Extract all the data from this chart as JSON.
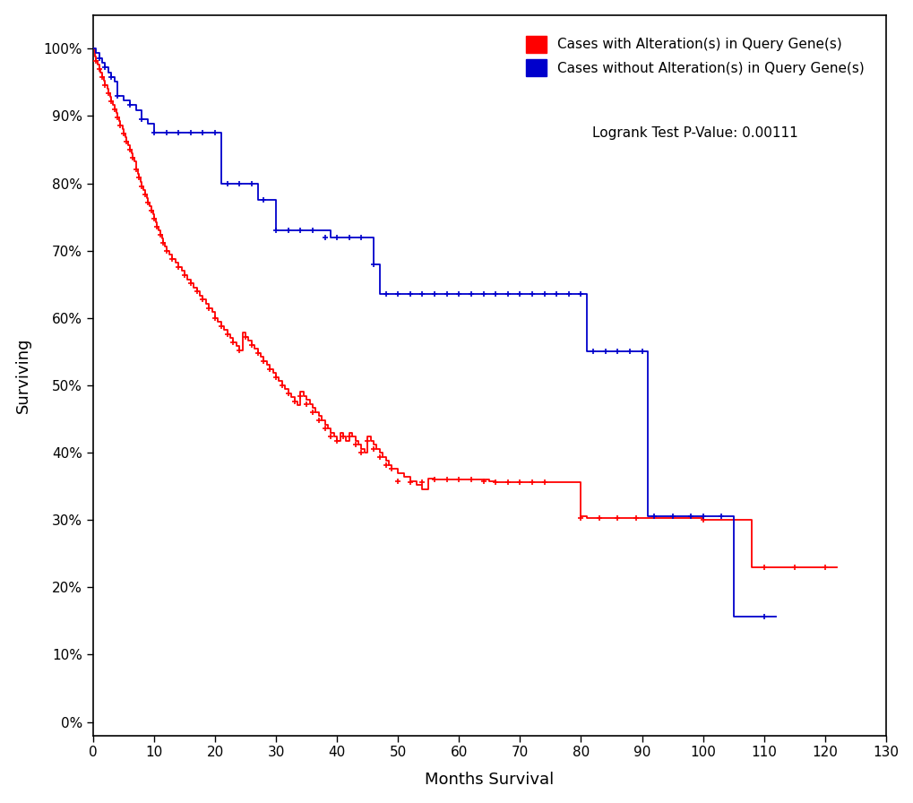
{
  "xlabel": "Months Survival",
  "ylabel": "Surviving",
  "xlim": [
    0,
    130
  ],
  "ylim": [
    -0.02,
    1.05
  ],
  "yticks": [
    0.0,
    0.1,
    0.2,
    0.3,
    0.4,
    0.5,
    0.6,
    0.7,
    0.8,
    0.9,
    1.0
  ],
  "ytick_labels": [
    "0%",
    "10%",
    "20%",
    "30%",
    "40%",
    "50%",
    "60%",
    "70%",
    "80%",
    "90%",
    "100%"
  ],
  "xticks": [
    0,
    10,
    20,
    30,
    40,
    50,
    60,
    70,
    80,
    90,
    100,
    110,
    120,
    130
  ],
  "legend_text1": "Cases with Alteration(s) in Query Gene(s)",
  "legend_text2": "Cases without Alteration(s) in Query Gene(s)",
  "pvalue_text": "Logrank Test P-Value: 0.00111",
  "color_red": "#FF0000",
  "color_blue": "#0000CC",
  "red_steps": [
    [
      0,
      1.0
    ],
    [
      0.3,
      0.988
    ],
    [
      0.5,
      0.982
    ],
    [
      0.8,
      0.976
    ],
    [
      1.0,
      0.97
    ],
    [
      1.2,
      0.964
    ],
    [
      1.5,
      0.958
    ],
    [
      1.8,
      0.952
    ],
    [
      2.0,
      0.946
    ],
    [
      2.3,
      0.94
    ],
    [
      2.5,
      0.934
    ],
    [
      2.8,
      0.928
    ],
    [
      3.0,
      0.922
    ],
    [
      3.3,
      0.916
    ],
    [
      3.5,
      0.91
    ],
    [
      3.8,
      0.904
    ],
    [
      4.0,
      0.898
    ],
    [
      4.3,
      0.892
    ],
    [
      4.5,
      0.886
    ],
    [
      4.8,
      0.88
    ],
    [
      5.0,
      0.874
    ],
    [
      5.3,
      0.868
    ],
    [
      5.5,
      0.862
    ],
    [
      5.8,
      0.856
    ],
    [
      6.0,
      0.85
    ],
    [
      6.3,
      0.844
    ],
    [
      6.5,
      0.838
    ],
    [
      6.8,
      0.832
    ],
    [
      7.0,
      0.82
    ],
    [
      7.3,
      0.814
    ],
    [
      7.5,
      0.808
    ],
    [
      7.8,
      0.802
    ],
    [
      8.0,
      0.796
    ],
    [
      8.3,
      0.79
    ],
    [
      8.5,
      0.784
    ],
    [
      8.8,
      0.778
    ],
    [
      9.0,
      0.772
    ],
    [
      9.3,
      0.766
    ],
    [
      9.5,
      0.76
    ],
    [
      9.8,
      0.754
    ],
    [
      10.0,
      0.748
    ],
    [
      10.3,
      0.742
    ],
    [
      10.5,
      0.736
    ],
    [
      10.8,
      0.73
    ],
    [
      11.0,
      0.724
    ],
    [
      11.3,
      0.718
    ],
    [
      11.5,
      0.712
    ],
    [
      11.8,
      0.706
    ],
    [
      12.0,
      0.7
    ],
    [
      12.5,
      0.694
    ],
    [
      13.0,
      0.688
    ],
    [
      13.5,
      0.682
    ],
    [
      14.0,
      0.676
    ],
    [
      14.5,
      0.67
    ],
    [
      15.0,
      0.663
    ],
    [
      15.5,
      0.657
    ],
    [
      16.0,
      0.651
    ],
    [
      16.5,
      0.645
    ],
    [
      17.0,
      0.639
    ],
    [
      17.5,
      0.633
    ],
    [
      18.0,
      0.627
    ],
    [
      18.5,
      0.621
    ],
    [
      19.0,
      0.615
    ],
    [
      19.5,
      0.609
    ],
    [
      20.0,
      0.6
    ],
    [
      20.5,
      0.594
    ],
    [
      21.0,
      0.588
    ],
    [
      21.5,
      0.582
    ],
    [
      22.0,
      0.576
    ],
    [
      22.5,
      0.57
    ],
    [
      23.0,
      0.564
    ],
    [
      23.5,
      0.558
    ],
    [
      24.0,
      0.552
    ],
    [
      24.5,
      0.578
    ],
    [
      25.0,
      0.572
    ],
    [
      25.5,
      0.566
    ],
    [
      26.0,
      0.56
    ],
    [
      26.5,
      0.554
    ],
    [
      27.0,
      0.548
    ],
    [
      27.5,
      0.542
    ],
    [
      28.0,
      0.536
    ],
    [
      28.5,
      0.53
    ],
    [
      29.0,
      0.524
    ],
    [
      29.5,
      0.518
    ],
    [
      30.0,
      0.512
    ],
    [
      30.5,
      0.506
    ],
    [
      31.0,
      0.5
    ],
    [
      31.5,
      0.494
    ],
    [
      32.0,
      0.488
    ],
    [
      32.5,
      0.482
    ],
    [
      33.0,
      0.476
    ],
    [
      33.5,
      0.47
    ],
    [
      34.0,
      0.49
    ],
    [
      34.5,
      0.484
    ],
    [
      35.0,
      0.478
    ],
    [
      35.5,
      0.472
    ],
    [
      36.0,
      0.466
    ],
    [
      36.5,
      0.46
    ],
    [
      37.0,
      0.454
    ],
    [
      37.5,
      0.448
    ],
    [
      38.0,
      0.442
    ],
    [
      38.5,
      0.436
    ],
    [
      39.0,
      0.43
    ],
    [
      39.5,
      0.424
    ],
    [
      40.0,
      0.418
    ],
    [
      40.5,
      0.43
    ],
    [
      41.0,
      0.424
    ],
    [
      41.5,
      0.418
    ],
    [
      42.0,
      0.43
    ],
    [
      42.5,
      0.424
    ],
    [
      43.0,
      0.418
    ],
    [
      43.5,
      0.412
    ],
    [
      44.0,
      0.406
    ],
    [
      44.5,
      0.4
    ],
    [
      45.0,
      0.424
    ],
    [
      45.5,
      0.418
    ],
    [
      46.0,
      0.412
    ],
    [
      46.5,
      0.406
    ],
    [
      47.0,
      0.4
    ],
    [
      47.5,
      0.394
    ],
    [
      48.0,
      0.388
    ],
    [
      48.5,
      0.382
    ],
    [
      49.0,
      0.376
    ],
    [
      50.0,
      0.37
    ],
    [
      51.0,
      0.364
    ],
    [
      52.0,
      0.358
    ],
    [
      53.0,
      0.352
    ],
    [
      54.0,
      0.346
    ],
    [
      55.0,
      0.362
    ],
    [
      56.0,
      0.36
    ],
    [
      57.0,
      0.36
    ],
    [
      58.0,
      0.36
    ],
    [
      59.0,
      0.36
    ],
    [
      60.0,
      0.36
    ],
    [
      61.0,
      0.36
    ],
    [
      62.0,
      0.36
    ],
    [
      63.0,
      0.36
    ],
    [
      64.0,
      0.36
    ],
    [
      65.0,
      0.358
    ],
    [
      66.0,
      0.356
    ],
    [
      67.0,
      0.356
    ],
    [
      68.0,
      0.356
    ],
    [
      69.0,
      0.356
    ],
    [
      70.0,
      0.356
    ],
    [
      71.0,
      0.356
    ],
    [
      72.0,
      0.356
    ],
    [
      73.0,
      0.356
    ],
    [
      74.0,
      0.356
    ],
    [
      75.0,
      0.356
    ],
    [
      80.0,
      0.305
    ],
    [
      81.0,
      0.303
    ],
    [
      82.0,
      0.303
    ],
    [
      83.0,
      0.303
    ],
    [
      84.0,
      0.303
    ],
    [
      85.0,
      0.303
    ],
    [
      86.0,
      0.303
    ],
    [
      87.0,
      0.303
    ],
    [
      88.0,
      0.303
    ],
    [
      89.0,
      0.303
    ],
    [
      90.0,
      0.303
    ],
    [
      100.0,
      0.3
    ],
    [
      108.0,
      0.23
    ],
    [
      112.0,
      0.23
    ],
    [
      115.0,
      0.23
    ],
    [
      120.0,
      0.23
    ],
    [
      122.0,
      0.23
    ]
  ],
  "blue_steps": [
    [
      0,
      1.0
    ],
    [
      0.5,
      0.993
    ],
    [
      1.0,
      0.986
    ],
    [
      1.5,
      0.979
    ],
    [
      2.0,
      0.972
    ],
    [
      2.5,
      0.965
    ],
    [
      3.0,
      0.958
    ],
    [
      3.5,
      0.951
    ],
    [
      4.0,
      0.93
    ],
    [
      5.0,
      0.923
    ],
    [
      6.0,
      0.916
    ],
    [
      7.0,
      0.909
    ],
    [
      8.0,
      0.895
    ],
    [
      9.0,
      0.888
    ],
    [
      10.0,
      0.875
    ],
    [
      11.0,
      0.875
    ],
    [
      12.0,
      0.875
    ],
    [
      13.0,
      0.875
    ],
    [
      14.0,
      0.875
    ],
    [
      15.0,
      0.875
    ],
    [
      16.0,
      0.875
    ],
    [
      17.0,
      0.875
    ],
    [
      18.0,
      0.875
    ],
    [
      19.0,
      0.875
    ],
    [
      20.0,
      0.875
    ],
    [
      21.0,
      0.8
    ],
    [
      22.0,
      0.8
    ],
    [
      23.0,
      0.8
    ],
    [
      24.0,
      0.8
    ],
    [
      25.0,
      0.8
    ],
    [
      26.0,
      0.8
    ],
    [
      27.0,
      0.775
    ],
    [
      28.0,
      0.775
    ],
    [
      29.0,
      0.775
    ],
    [
      30.0,
      0.73
    ],
    [
      31.0,
      0.73
    ],
    [
      32.0,
      0.73
    ],
    [
      33.0,
      0.73
    ],
    [
      34.0,
      0.73
    ],
    [
      35.0,
      0.73
    ],
    [
      36.0,
      0.73
    ],
    [
      37.0,
      0.73
    ],
    [
      38.0,
      0.73
    ],
    [
      39.0,
      0.72
    ],
    [
      40.0,
      0.72
    ],
    [
      41.0,
      0.72
    ],
    [
      42.0,
      0.72
    ],
    [
      43.0,
      0.72
    ],
    [
      44.0,
      0.72
    ],
    [
      45.0,
      0.72
    ],
    [
      46.0,
      0.68
    ],
    [
      47.0,
      0.635
    ],
    [
      48.0,
      0.635
    ],
    [
      49.0,
      0.635
    ],
    [
      50.0,
      0.635
    ],
    [
      51.0,
      0.635
    ],
    [
      52.0,
      0.635
    ],
    [
      53.0,
      0.635
    ],
    [
      54.0,
      0.635
    ],
    [
      55.0,
      0.635
    ],
    [
      56.0,
      0.635
    ],
    [
      57.0,
      0.635
    ],
    [
      58.0,
      0.635
    ],
    [
      59.0,
      0.635
    ],
    [
      60.0,
      0.635
    ],
    [
      61.0,
      0.635
    ],
    [
      62.0,
      0.635
    ],
    [
      63.0,
      0.635
    ],
    [
      64.0,
      0.635
    ],
    [
      65.0,
      0.635
    ],
    [
      66.0,
      0.635
    ],
    [
      67.0,
      0.635
    ],
    [
      68.0,
      0.635
    ],
    [
      69.0,
      0.635
    ],
    [
      70.0,
      0.635
    ],
    [
      71.0,
      0.635
    ],
    [
      72.0,
      0.635
    ],
    [
      73.0,
      0.635
    ],
    [
      74.0,
      0.635
    ],
    [
      75.0,
      0.635
    ],
    [
      76.0,
      0.635
    ],
    [
      77.0,
      0.635
    ],
    [
      78.0,
      0.635
    ],
    [
      79.0,
      0.635
    ],
    [
      80.0,
      0.635
    ],
    [
      81.0,
      0.55
    ],
    [
      82.0,
      0.55
    ],
    [
      83.0,
      0.55
    ],
    [
      84.0,
      0.55
    ],
    [
      85.0,
      0.55
    ],
    [
      86.0,
      0.55
    ],
    [
      87.0,
      0.55
    ],
    [
      88.0,
      0.55
    ],
    [
      89.0,
      0.55
    ],
    [
      90.0,
      0.55
    ],
    [
      91.0,
      0.305
    ],
    [
      92.0,
      0.305
    ],
    [
      93.0,
      0.305
    ],
    [
      94.0,
      0.305
    ],
    [
      95.0,
      0.305
    ],
    [
      96.0,
      0.305
    ],
    [
      97.0,
      0.305
    ],
    [
      98.0,
      0.305
    ],
    [
      99.0,
      0.305
    ],
    [
      100.0,
      0.305
    ],
    [
      101.0,
      0.305
    ],
    [
      102.0,
      0.305
    ],
    [
      103.0,
      0.305
    ],
    [
      104.0,
      0.305
    ],
    [
      105.0,
      0.157
    ],
    [
      110.0,
      0.157
    ],
    [
      112.0,
      0.157
    ]
  ],
  "red_censors": [
    [
      0.5,
      0.982
    ],
    [
      1.0,
      0.97
    ],
    [
      1.5,
      0.958
    ],
    [
      2.0,
      0.946
    ],
    [
      2.5,
      0.934
    ],
    [
      3.0,
      0.922
    ],
    [
      3.5,
      0.91
    ],
    [
      4.0,
      0.898
    ],
    [
      4.5,
      0.886
    ],
    [
      5.0,
      0.874
    ],
    [
      5.5,
      0.862
    ],
    [
      6.0,
      0.85
    ],
    [
      6.5,
      0.838
    ],
    [
      7.0,
      0.82
    ],
    [
      7.5,
      0.808
    ],
    [
      8.0,
      0.796
    ],
    [
      8.5,
      0.784
    ],
    [
      9.0,
      0.772
    ],
    [
      9.5,
      0.76
    ],
    [
      10.0,
      0.748
    ],
    [
      10.5,
      0.736
    ],
    [
      11.0,
      0.724
    ],
    [
      11.5,
      0.712
    ],
    [
      12.0,
      0.7
    ],
    [
      13.0,
      0.688
    ],
    [
      14.0,
      0.676
    ],
    [
      15.0,
      0.663
    ],
    [
      16.0,
      0.651
    ],
    [
      17.0,
      0.639
    ],
    [
      18.0,
      0.627
    ],
    [
      19.0,
      0.615
    ],
    [
      20.0,
      0.6
    ],
    [
      21.0,
      0.588
    ],
    [
      22.0,
      0.576
    ],
    [
      23.0,
      0.564
    ],
    [
      24.0,
      0.552
    ],
    [
      25.0,
      0.572
    ],
    [
      26.0,
      0.56
    ],
    [
      27.0,
      0.548
    ],
    [
      28.0,
      0.536
    ],
    [
      29.0,
      0.524
    ],
    [
      30.0,
      0.512
    ],
    [
      31.0,
      0.5
    ],
    [
      32.0,
      0.488
    ],
    [
      33.0,
      0.476
    ],
    [
      34.0,
      0.484
    ],
    [
      35.0,
      0.472
    ],
    [
      36.0,
      0.46
    ],
    [
      37.0,
      0.448
    ],
    [
      38.0,
      0.436
    ],
    [
      39.0,
      0.424
    ],
    [
      40.0,
      0.418
    ],
    [
      41.0,
      0.424
    ],
    [
      42.0,
      0.424
    ],
    [
      43.0,
      0.412
    ],
    [
      44.0,
      0.4
    ],
    [
      45.0,
      0.418
    ],
    [
      46.0,
      0.406
    ],
    [
      47.0,
      0.394
    ],
    [
      48.0,
      0.382
    ],
    [
      49.0,
      0.376
    ],
    [
      50.0,
      0.358
    ],
    [
      52.0,
      0.356
    ],
    [
      54.0,
      0.356
    ],
    [
      56.0,
      0.36
    ],
    [
      58.0,
      0.36
    ],
    [
      60.0,
      0.36
    ],
    [
      62.0,
      0.36
    ],
    [
      64.0,
      0.358
    ],
    [
      66.0,
      0.356
    ],
    [
      68.0,
      0.356
    ],
    [
      70.0,
      0.356
    ],
    [
      72.0,
      0.356
    ],
    [
      74.0,
      0.356
    ],
    [
      80.0,
      0.303
    ],
    [
      83.0,
      0.303
    ],
    [
      86.0,
      0.303
    ],
    [
      89.0,
      0.303
    ],
    [
      100.0,
      0.3
    ],
    [
      110.0,
      0.23
    ],
    [
      115.0,
      0.23
    ],
    [
      120.0,
      0.23
    ]
  ],
  "blue_censors": [
    [
      1.0,
      0.986
    ],
    [
      2.0,
      0.972
    ],
    [
      3.0,
      0.958
    ],
    [
      4.0,
      0.93
    ],
    [
      6.0,
      0.916
    ],
    [
      8.0,
      0.895
    ],
    [
      10.0,
      0.875
    ],
    [
      12.0,
      0.875
    ],
    [
      14.0,
      0.875
    ],
    [
      16.0,
      0.875
    ],
    [
      18.0,
      0.875
    ],
    [
      20.0,
      0.875
    ],
    [
      22.0,
      0.8
    ],
    [
      24.0,
      0.8
    ],
    [
      26.0,
      0.8
    ],
    [
      28.0,
      0.775
    ],
    [
      30.0,
      0.73
    ],
    [
      32.0,
      0.73
    ],
    [
      34.0,
      0.73
    ],
    [
      36.0,
      0.73
    ],
    [
      38.0,
      0.72
    ],
    [
      40.0,
      0.72
    ],
    [
      42.0,
      0.72
    ],
    [
      44.0,
      0.72
    ],
    [
      46.0,
      0.68
    ],
    [
      48.0,
      0.635
    ],
    [
      50.0,
      0.635
    ],
    [
      52.0,
      0.635
    ],
    [
      54.0,
      0.635
    ],
    [
      56.0,
      0.635
    ],
    [
      58.0,
      0.635
    ],
    [
      60.0,
      0.635
    ],
    [
      62.0,
      0.635
    ],
    [
      64.0,
      0.635
    ],
    [
      66.0,
      0.635
    ],
    [
      68.0,
      0.635
    ],
    [
      70.0,
      0.635
    ],
    [
      72.0,
      0.635
    ],
    [
      74.0,
      0.635
    ],
    [
      76.0,
      0.635
    ],
    [
      78.0,
      0.635
    ],
    [
      80.0,
      0.635
    ],
    [
      82.0,
      0.55
    ],
    [
      84.0,
      0.55
    ],
    [
      86.0,
      0.55
    ],
    [
      88.0,
      0.55
    ],
    [
      90.0,
      0.55
    ],
    [
      92.0,
      0.305
    ],
    [
      95.0,
      0.305
    ],
    [
      98.0,
      0.305
    ],
    [
      100.0,
      0.305
    ],
    [
      103.0,
      0.305
    ],
    [
      110.0,
      0.157
    ]
  ]
}
